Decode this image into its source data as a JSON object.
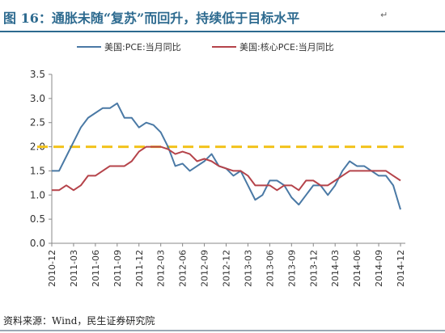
{
  "title": "图 16：通胀未随“复苏”而回升，持续低于目标水平",
  "title_mark": "↵",
  "source": "资料来源：Wind，民生证券研究院",
  "chart_data": {
    "type": "line",
    "title": "",
    "xlabel": "",
    "ylabel": "",
    "ylim": [
      0,
      3.5
    ],
    "yticks": [
      0.0,
      0.5,
      1.0,
      1.5,
      2.0,
      2.5,
      3.0,
      3.5
    ],
    "ytick_labels": [
      "0.0",
      "0.5",
      "1.0",
      "1.5",
      "2.0",
      "2.5",
      "3.0",
      "3.5"
    ],
    "grid": false,
    "legend_position": "top",
    "x": [
      "2010-12",
      "2011-01",
      "2011-02",
      "2011-03",
      "2011-04",
      "2011-05",
      "2011-06",
      "2011-07",
      "2011-08",
      "2011-09",
      "2011-10",
      "2011-11",
      "2011-12",
      "2012-01",
      "2012-02",
      "2012-03",
      "2012-04",
      "2012-05",
      "2012-06",
      "2012-07",
      "2012-08",
      "2012-09",
      "2012-10",
      "2012-11",
      "2012-12",
      "2013-01",
      "2013-02",
      "2013-03",
      "2013-04",
      "2013-05",
      "2013-06",
      "2013-07",
      "2013-08",
      "2013-09",
      "2013-10",
      "2013-11",
      "2013-12",
      "2014-01",
      "2014-02",
      "2014-03",
      "2014-04",
      "2014-05",
      "2014-06",
      "2014-07",
      "2014-08",
      "2014-09",
      "2014-10",
      "2014-11",
      "2014-12"
    ],
    "xtick_labels": [
      "2010-12",
      "2011-03",
      "2011-06",
      "2011-09",
      "2011-12",
      "2012-03",
      "2012-06",
      "2012-09",
      "2012-12",
      "2013-03",
      "2013-06",
      "2013-09",
      "2013-12",
      "2014-03",
      "2014-06",
      "2014-09",
      "2014-12"
    ],
    "series": [
      {
        "name": "美国:PCE:当月同比",
        "color": "#4a79a5",
        "values": [
          1.5,
          1.5,
          1.8,
          2.1,
          2.4,
          2.6,
          2.7,
          2.8,
          2.8,
          2.9,
          2.6,
          2.6,
          2.4,
          2.5,
          2.45,
          2.3,
          2.0,
          1.6,
          1.65,
          1.5,
          1.6,
          1.7,
          1.85,
          1.6,
          1.55,
          1.4,
          1.5,
          1.2,
          0.9,
          1.0,
          1.3,
          1.3,
          1.2,
          0.95,
          0.8,
          1.0,
          1.2,
          1.2,
          1.0,
          1.2,
          1.5,
          1.7,
          1.6,
          1.6,
          1.5,
          1.4,
          1.4,
          1.2,
          0.7
        ]
      },
      {
        "name": "美国:核心PCE:当月同比",
        "color": "#b5434a",
        "values": [
          1.1,
          1.1,
          1.2,
          1.1,
          1.2,
          1.4,
          1.4,
          1.5,
          1.6,
          1.6,
          1.6,
          1.7,
          1.9,
          2.0,
          2.0,
          2.0,
          1.95,
          1.85,
          1.9,
          1.85,
          1.7,
          1.75,
          1.7,
          1.6,
          1.55,
          1.5,
          1.5,
          1.4,
          1.2,
          1.2,
          1.2,
          1.1,
          1.2,
          1.2,
          1.1,
          1.3,
          1.3,
          1.2,
          1.2,
          1.3,
          1.4,
          1.5,
          1.5,
          1.5,
          1.5,
          1.5,
          1.5,
          1.4,
          1.3
        ]
      }
    ],
    "reference_line": {
      "value": 2.0,
      "color": "#f2c21b",
      "style": "dashed"
    }
  }
}
